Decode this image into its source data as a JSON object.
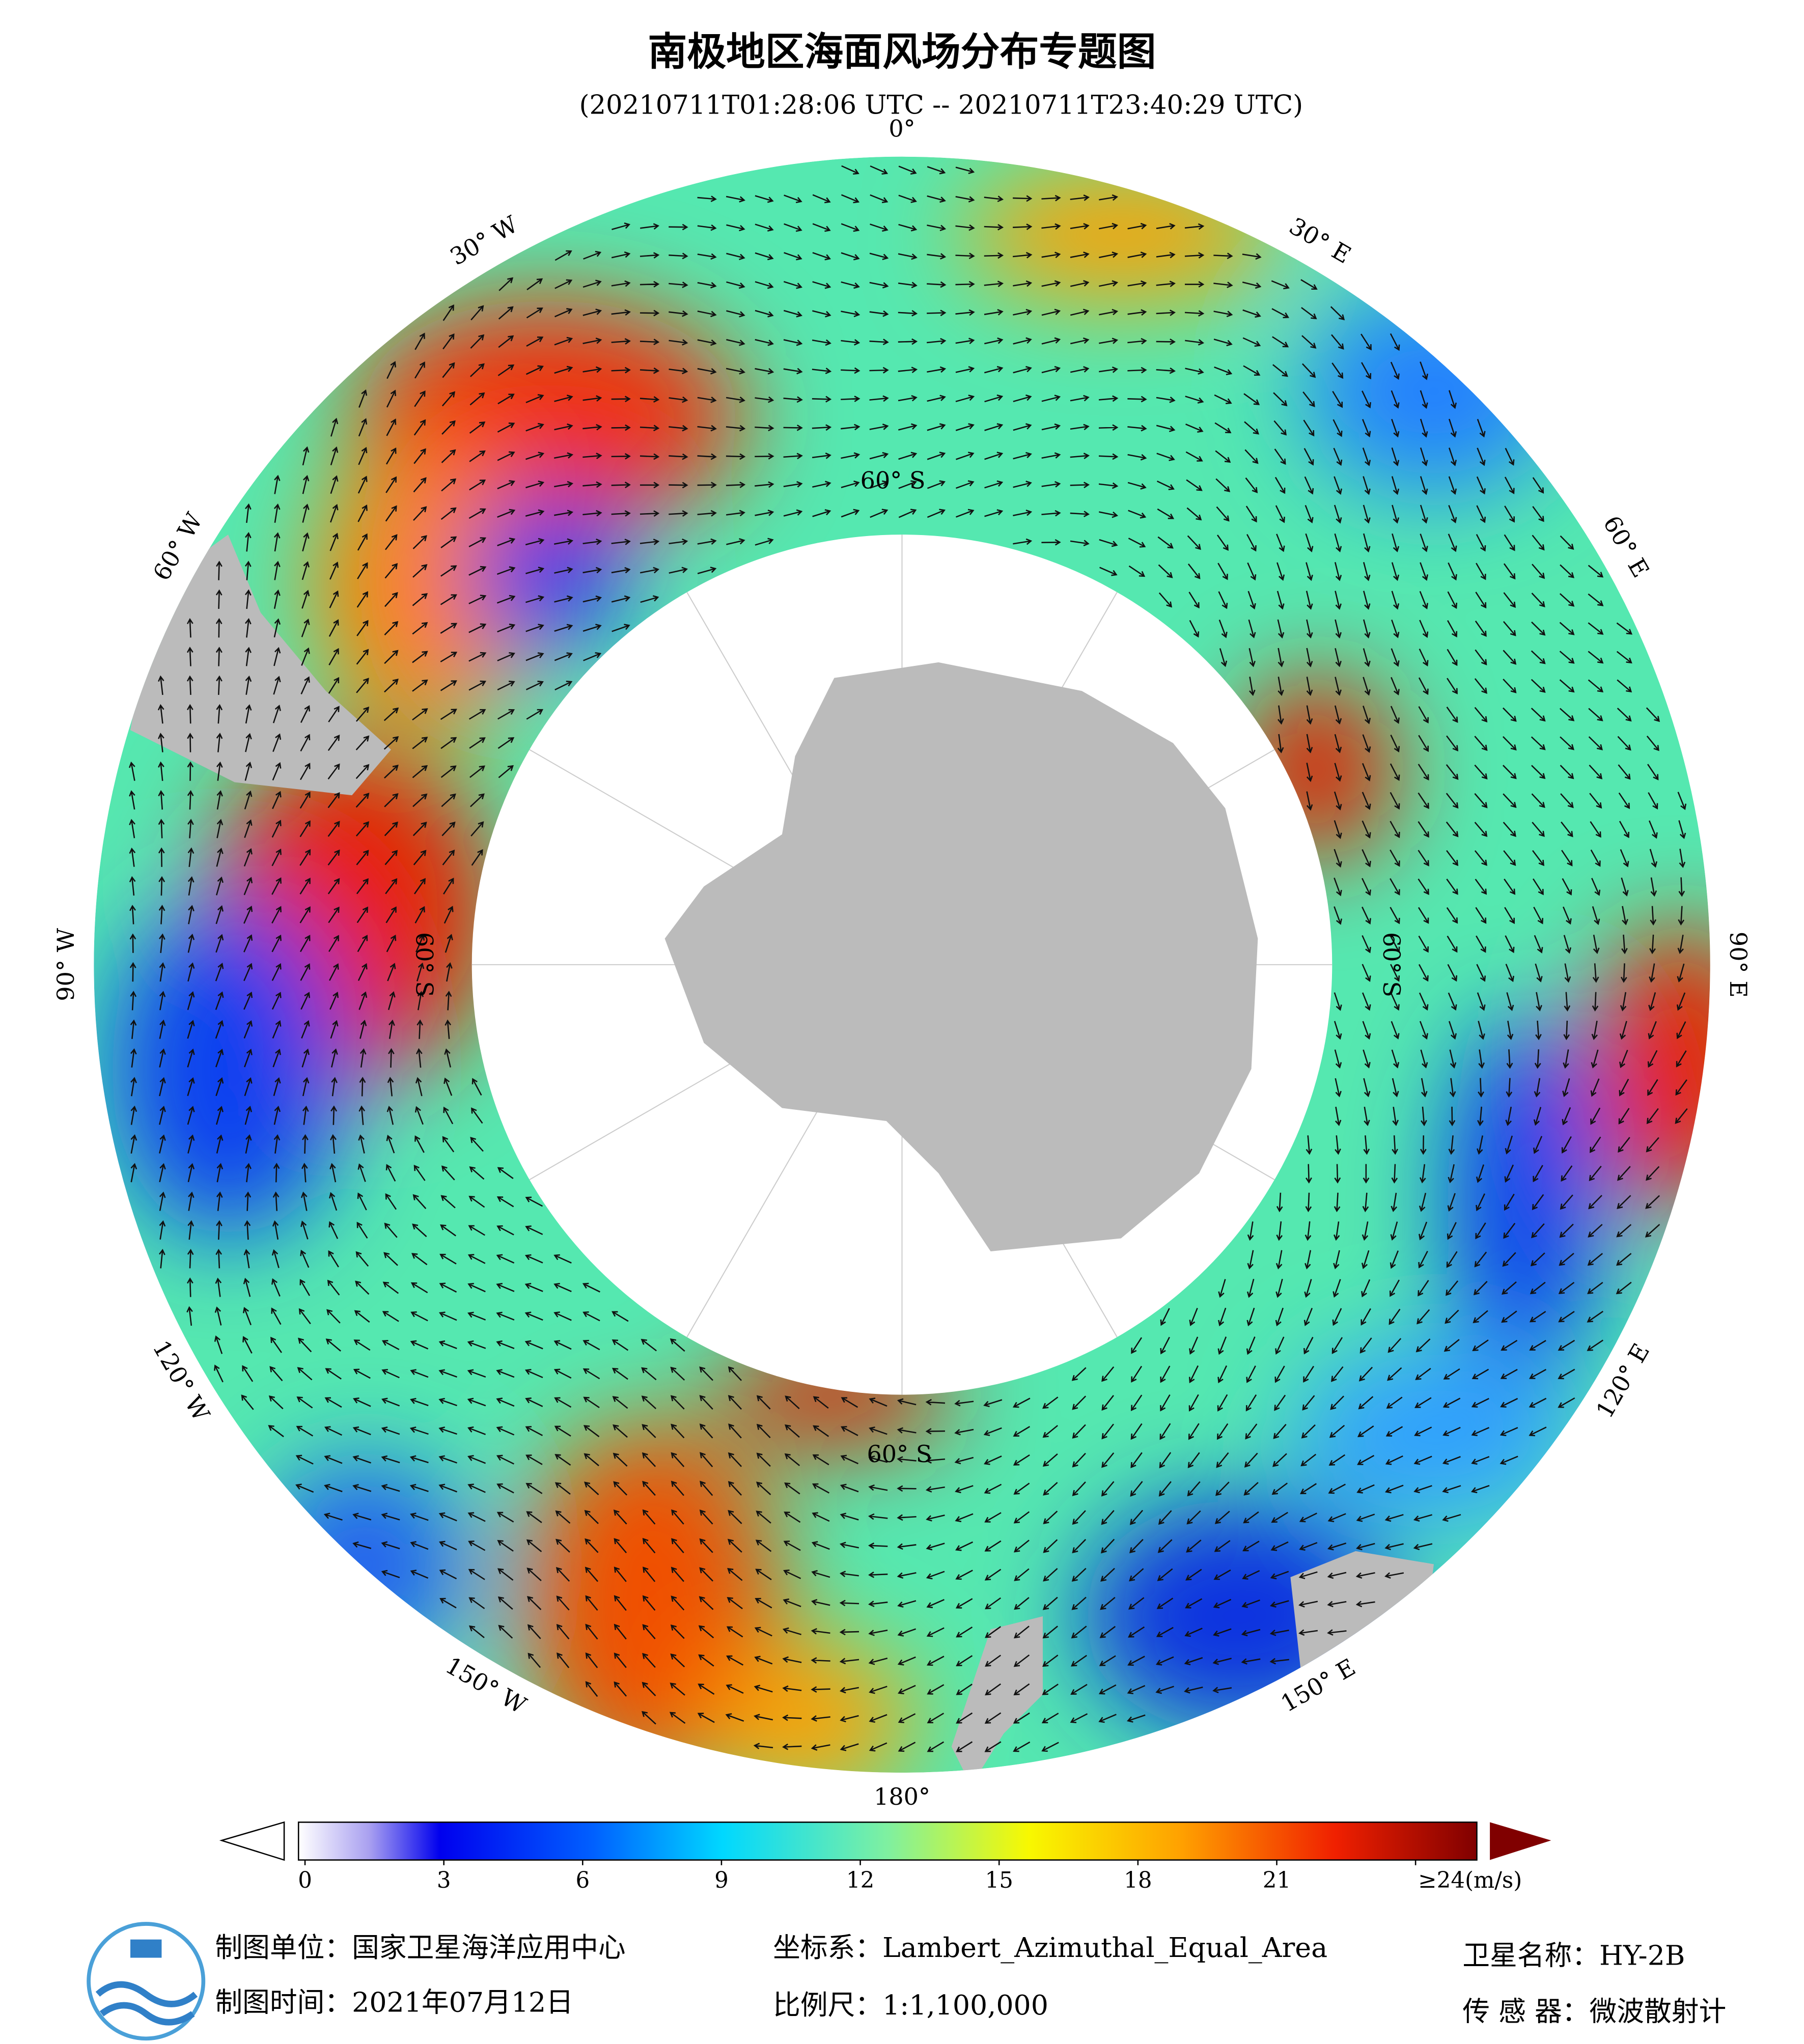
{
  "title": "南极地区海面风场分布专题图",
  "subtitle": "(20210711T01:28:06 UTC -- 20210711T23:40:29 UTC)",
  "map": {
    "longitude_labels": [
      "0°",
      "30° E",
      "60° E",
      "90° E",
      "120° E",
      "150° E",
      "180°",
      "150° W",
      "120° W",
      "90° W",
      "60° W",
      "30° W"
    ],
    "latitude_labels": [
      "60° S",
      "60° S",
      "60° S",
      "60° S"
    ]
  },
  "colorbar": {
    "range": [
      0,
      24
    ],
    "ticks": [
      0,
      3,
      6,
      9,
      12,
      15,
      18,
      21,
      {
        "value": 24,
        "label": "≥24(m/s)"
      }
    ]
  },
  "footer": {
    "unit": "制图单位：国家卫星海洋应用中心",
    "time": "制图时间：2021年07月12日",
    "projection": "坐标系：Lambert_Azimuthal_Equal_Area",
    "scale": "比例尺：1:1,100,000",
    "satellite": "卫星名称：HY-2B",
    "sensor": "传 感 器：微波散射计"
  }
}
